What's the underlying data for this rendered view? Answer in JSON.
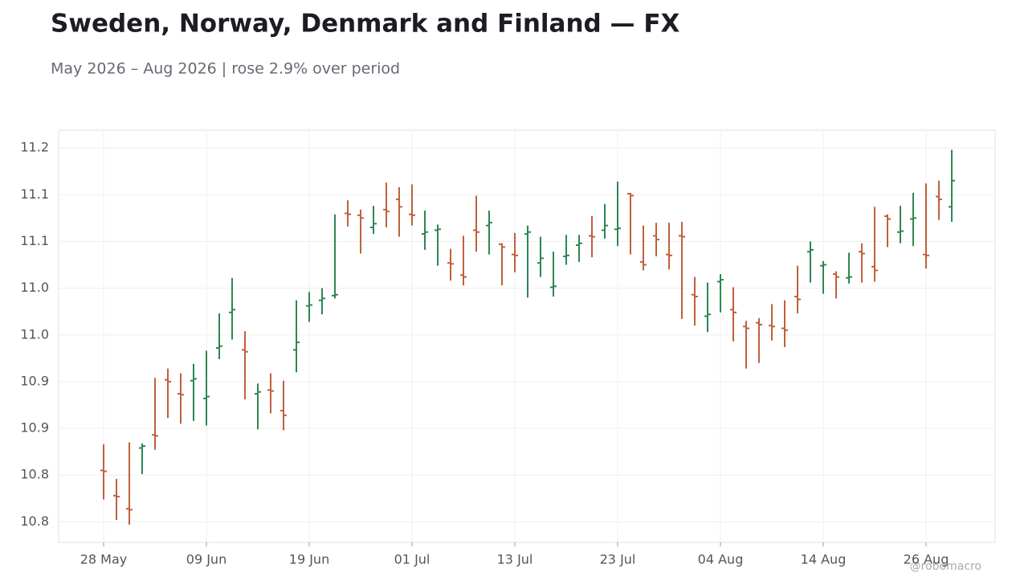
{
  "chart_data": {
    "type": "ohlc",
    "title": "Sweden, Norway, Denmark and Finland — FX",
    "subtitle": "May 2026 – Aug 2026 | rose 2.9% over period",
    "credit": "@robomacro",
    "categories": [
      "28 May",
      null,
      null,
      null,
      null,
      null,
      null,
      null,
      "09 Jun",
      null,
      null,
      null,
      null,
      null,
      null,
      null,
      "19 Jun",
      null,
      null,
      null,
      null,
      null,
      null,
      null,
      "01 Jul",
      null,
      null,
      null,
      null,
      null,
      null,
      null,
      "13 Jul",
      null,
      null,
      null,
      null,
      null,
      null,
      null,
      "23 Jul",
      null,
      null,
      null,
      null,
      null,
      null,
      null,
      "04 Aug",
      null,
      null,
      null,
      null,
      null,
      null,
      null,
      "14 Aug",
      null,
      null,
      null,
      null,
      null,
      null,
      null,
      "26 Aug",
      null,
      null
    ],
    "open": [
      10.855,
      10.828,
      10.814,
      10.879,
      10.893,
      10.952,
      10.937,
      10.951,
      10.932,
      10.986,
      11.024,
      10.984,
      10.937,
      10.941,
      10.919,
      10.984,
      11.031,
      11.037,
      11.042,
      11.13,
      11.128,
      11.115,
      11.134,
      11.145,
      11.129,
      11.108,
      11.112,
      11.077,
      11.064,
      11.112,
      11.117,
      11.097,
      11.086,
      11.108,
      11.077,
      11.051,
      11.084,
      11.096,
      11.106,
      11.112,
      11.113,
      11.151,
      11.078,
      11.106,
      11.086,
      11.106,
      11.043,
      11.02,
      11.057,
      11.027,
      11.009,
      11.013,
      11.01,
      11.007,
      11.041,
      11.089,
      11.074,
      11.065,
      11.061,
      11.089,
      11.073,
      11.127,
      11.11,
      11.124,
      11.086,
      11.148,
      11.137
    ],
    "high": [
      10.883,
      10.846,
      10.885,
      10.884,
      10.954,
      10.964,
      10.959,
      10.969,
      10.983,
      11.023,
      11.061,
      11.004,
      10.948,
      10.959,
      10.951,
      11.037,
      11.046,
      11.05,
      11.129,
      11.144,
      11.134,
      11.138,
      11.163,
      11.158,
      11.161,
      11.133,
      11.118,
      11.092,
      11.106,
      11.149,
      11.133,
      11.098,
      11.109,
      11.117,
      11.105,
      11.089,
      11.107,
      11.107,
      11.127,
      11.14,
      11.164,
      11.152,
      11.117,
      11.12,
      11.12,
      11.121,
      11.062,
      11.056,
      11.065,
      11.051,
      11.015,
      11.018,
      11.033,
      11.037,
      11.074,
      11.1,
      11.079,
      11.068,
      11.088,
      11.098,
      11.137,
      11.129,
      11.138,
      11.152,
      11.162,
      11.165,
      11.198
    ],
    "low": [
      10.824,
      10.802,
      10.797,
      10.851,
      10.877,
      10.911,
      10.905,
      10.908,
      10.903,
      10.974,
      10.995,
      10.931,
      10.899,
      10.916,
      10.898,
      10.96,
      11.014,
      11.022,
      11.039,
      11.116,
      11.087,
      11.108,
      11.115,
      11.105,
      11.117,
      11.091,
      11.074,
      11.058,
      11.053,
      11.089,
      11.086,
      11.053,
      11.067,
      11.04,
      11.062,
      11.041,
      11.075,
      11.078,
      11.083,
      11.103,
      11.095,
      11.086,
      11.069,
      11.084,
      11.07,
      11.017,
      11.01,
      11.003,
      11.024,
      10.993,
      10.964,
      10.97,
      10.994,
      10.987,
      11.023,
      11.056,
      11.044,
      11.039,
      11.055,
      11.056,
      11.057,
      11.094,
      11.098,
      11.095,
      11.071,
      11.123,
      11.121
    ],
    "close": [
      10.854,
      10.827,
      10.813,
      10.881,
      10.892,
      10.95,
      10.936,
      10.953,
      10.934,
      10.988,
      11.027,
      10.982,
      10.939,
      10.94,
      10.914,
      10.992,
      11.032,
      11.039,
      11.043,
      11.129,
      11.125,
      11.119,
      11.132,
      11.137,
      11.128,
      11.11,
      11.113,
      11.076,
      11.062,
      11.11,
      11.12,
      11.094,
      11.085,
      11.11,
      11.082,
      11.052,
      11.085,
      11.098,
      11.105,
      11.117,
      11.114,
      11.149,
      11.075,
      11.102,
      11.085,
      11.105,
      11.041,
      11.022,
      11.059,
      11.024,
      11.007,
      11.011,
      11.009,
      11.005,
      11.038,
      11.091,
      11.075,
      11.062,
      11.062,
      11.087,
      11.069,
      11.124,
      11.111,
      11.125,
      11.085,
      11.145,
      11.165
    ],
    "up_color": "#2e8653",
    "down_color": "#c0603c",
    "ylim": [
      10.778,
      11.219
    ],
    "yticks": [
      {
        "value": 10.8,
        "label": "10.8"
      },
      {
        "value": 10.85,
        "label": "10.8"
      },
      {
        "value": 10.9,
        "label": "10.9"
      },
      {
        "value": 10.95,
        "label": "10.9"
      },
      {
        "value": 11.0,
        "label": "11.0"
      },
      {
        "value": 11.05,
        "label": "11.0"
      },
      {
        "value": 11.1,
        "label": "11.1"
      },
      {
        "value": 11.15,
        "label": "11.1"
      },
      {
        "value": 11.2,
        "label": "11.2"
      }
    ],
    "grid": true
  }
}
